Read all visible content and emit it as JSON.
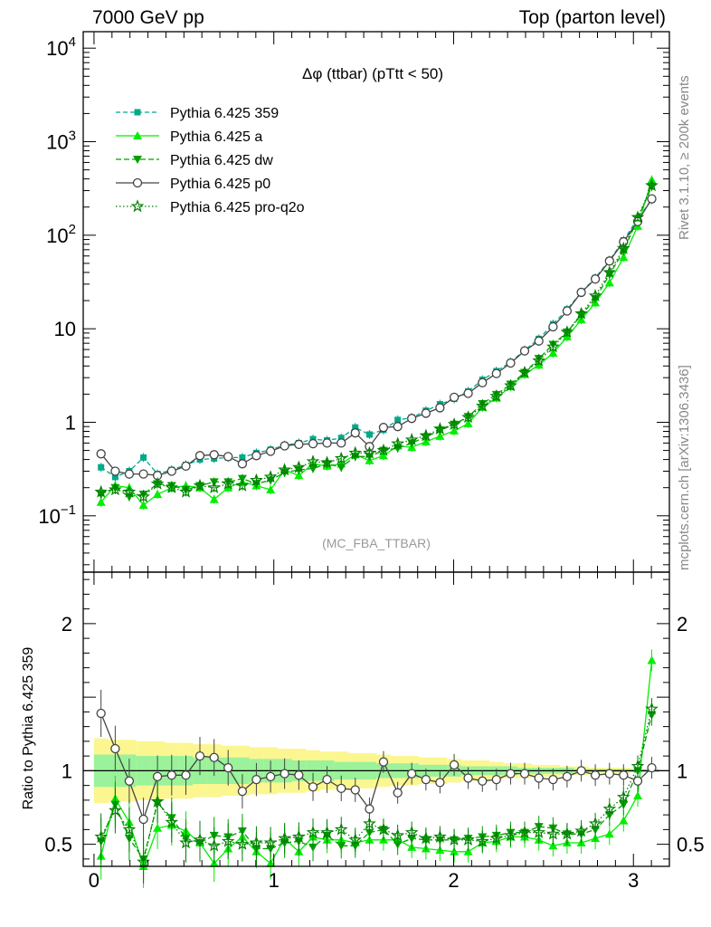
{
  "header": {
    "left": "7000 GeV pp",
    "right": "Top (parton level)"
  },
  "side_labels": {
    "rivet": "Rivet 3.1.10, ≥ 200k events",
    "mcplots": "mcplots.cern.ch [arXiv:1306.3436]"
  },
  "chart_data": [
    {
      "type": "line",
      "title": "Δφ (ttbar) (pTtt < 50)",
      "watermark": "(MC_FBA_TTBAR)",
      "yscale": "log",
      "ylim": [
        0.025,
        15000
      ],
      "xlim": [
        -0.06,
        3.2
      ],
      "legend_position": "top-left",
      "y_ticks": [
        {
          "value": 10000,
          "base": "10",
          "exp": "4"
        },
        {
          "value": 1000,
          "base": "10",
          "exp": "3"
        },
        {
          "value": 100,
          "base": "10",
          "exp": "2"
        },
        {
          "value": 10,
          "base": "10",
          "exp": ""
        },
        {
          "value": 1,
          "base": "1",
          "exp": ""
        },
        {
          "value": 0.1,
          "base": "10",
          "exp": "−1"
        }
      ],
      "x": [
        0.039,
        0.118,
        0.196,
        0.275,
        0.353,
        0.432,
        0.511,
        0.589,
        0.668,
        0.746,
        0.825,
        0.903,
        0.982,
        1.06,
        1.139,
        1.218,
        1.296,
        1.375,
        1.453,
        1.532,
        1.61,
        1.689,
        1.767,
        1.846,
        1.924,
        2.003,
        2.081,
        2.16,
        2.238,
        2.317,
        2.395,
        2.474,
        2.553,
        2.631,
        2.71,
        2.788,
        2.867,
        2.945,
        3.024,
        3.102
      ],
      "series": [
        {
          "name": "Pythia 6.425 359",
          "color": "#00a988",
          "dash": "5,3",
          "marker": "square",
          "values": [
            0.33,
            0.26,
            0.3,
            0.42,
            0.28,
            0.31,
            0.35,
            0.4,
            0.41,
            0.42,
            0.42,
            0.47,
            0.51,
            0.57,
            0.6,
            0.66,
            0.64,
            0.68,
            0.88,
            0.74,
            0.83,
            1.06,
            1.12,
            1.33,
            1.56,
            1.78,
            2.14,
            2.85,
            3.52,
            4.4,
            5.9,
            7.8,
            11.2,
            16.1,
            24.5,
            35.0,
            54.0,
            88.0,
            150.0,
            240.0
          ]
        },
        {
          "name": "Pythia 6.425 a",
          "color": "#00ee00",
          "dash": "",
          "marker": "triangle-up",
          "values": [
            0.14,
            0.21,
            0.2,
            0.13,
            0.17,
            0.2,
            0.21,
            0.2,
            0.15,
            0.2,
            0.23,
            0.21,
            0.19,
            0.31,
            0.27,
            0.36,
            0.34,
            0.36,
            0.45,
            0.39,
            0.44,
            0.56,
            0.54,
            0.62,
            0.71,
            0.81,
            0.97,
            1.45,
            1.82,
            2.41,
            3.26,
            4.1,
            5.5,
            8.2,
            12.5,
            19.0,
            31.0,
            58.0,
            125.0,
            390.0
          ]
        },
        {
          "name": "Pythia 6.425 dw",
          "color": "#00a000",
          "dash": "6,3",
          "marker": "triangle-down",
          "values": [
            0.17,
            0.2,
            0.16,
            0.17,
            0.22,
            0.21,
            0.19,
            0.21,
            0.23,
            0.23,
            0.25,
            0.22,
            0.24,
            0.29,
            0.31,
            0.32,
            0.36,
            0.33,
            0.43,
            0.43,
            0.5,
            0.53,
            0.6,
            0.7,
            0.82,
            0.95,
            1.15,
            1.58,
            1.98,
            2.55,
            3.4,
            4.8,
            6.8,
            9.2,
            14.0,
            21.0,
            38.0,
            68.0,
            150.0,
            330.0
          ]
        },
        {
          "name": "Pythia 6.425 p0",
          "color": "#444444",
          "dash": "",
          "marker": "circle",
          "values": [
            0.46,
            0.3,
            0.28,
            0.28,
            0.27,
            0.3,
            0.34,
            0.44,
            0.45,
            0.43,
            0.36,
            0.44,
            0.49,
            0.56,
            0.58,
            0.59,
            0.6,
            0.6,
            0.77,
            0.55,
            0.88,
            0.9,
            1.1,
            1.25,
            1.43,
            1.85,
            2.04,
            2.65,
            3.32,
            4.3,
            5.8,
            7.4,
            10.5,
            15.5,
            24.5,
            34.0,
            53.0,
            85.0,
            140.0,
            245.0
          ]
        },
        {
          "name": "Pythia 6.425 pro-q2o",
          "color": "#008000",
          "dash": "1.5,2.5",
          "marker": "star",
          "values": [
            0.18,
            0.19,
            0.18,
            0.16,
            0.22,
            0.2,
            0.18,
            0.21,
            0.2,
            0.22,
            0.21,
            0.24,
            0.26,
            0.31,
            0.33,
            0.38,
            0.37,
            0.41,
            0.47,
            0.47,
            0.5,
            0.59,
            0.65,
            0.72,
            0.85,
            0.95,
            1.13,
            1.49,
            1.9,
            2.46,
            3.4,
            4.55,
            6.4,
            9.2,
            14.5,
            22.5,
            40.0,
            72.0,
            155.0,
            340.0
          ]
        }
      ]
    },
    {
      "type": "line",
      "ylabel": "Ratio to Pythia 6.425 359",
      "ylim": [
        0.35,
        2.35
      ],
      "xlim": [
        -0.06,
        3.2
      ],
      "y_ticks": [
        "0.5",
        "1",
        "2"
      ],
      "x_ticks": [
        "0",
        "1",
        "2",
        "3"
      ],
      "band_outer_half_width": [
        0.22,
        0.21,
        0.21,
        0.2,
        0.2,
        0.19,
        0.19,
        0.18,
        0.18,
        0.17,
        0.17,
        0.16,
        0.16,
        0.15,
        0.15,
        0.14,
        0.13,
        0.13,
        0.12,
        0.12,
        0.11,
        0.1,
        0.1,
        0.09,
        0.09,
        0.08,
        0.07,
        0.07,
        0.06,
        0.05,
        0.05,
        0.04,
        0.04,
        0.03,
        0.03,
        0.02,
        0.02,
        0.02,
        0.01,
        0.01
      ],
      "band_inner_half_width": [
        0.11,
        0.11,
        0.11,
        0.1,
        0.1,
        0.1,
        0.1,
        0.09,
        0.09,
        0.09,
        0.09,
        0.08,
        0.08,
        0.08,
        0.07,
        0.07,
        0.07,
        0.06,
        0.06,
        0.06,
        0.05,
        0.05,
        0.05,
        0.04,
        0.04,
        0.04,
        0.03,
        0.03,
        0.03,
        0.03,
        0.02,
        0.02,
        0.02,
        0.02,
        0.01,
        0.01,
        0.01,
        0.01,
        0.01,
        0.01
      ],
      "series": [
        {
          "name": "Pythia 6.425 a",
          "values": [
            0.42,
            0.81,
            0.65,
            0.31,
            0.61,
            0.63,
            0.59,
            0.51,
            0.37,
            0.47,
            0.55,
            0.45,
            0.37,
            0.54,
            0.45,
            0.55,
            0.53,
            0.53,
            0.51,
            0.53,
            0.53,
            0.53,
            0.48,
            0.47,
            0.46,
            0.45,
            0.45,
            0.51,
            0.52,
            0.55,
            0.55,
            0.53,
            0.49,
            0.51,
            0.51,
            0.54,
            0.57,
            0.66,
            0.83,
            1.75
          ]
        },
        {
          "name": "Pythia 6.425 dw",
          "values": [
            0.52,
            0.77,
            0.54,
            0.4,
            0.78,
            0.68,
            0.54,
            0.51,
            0.56,
            0.55,
            0.59,
            0.47,
            0.47,
            0.51,
            0.52,
            0.48,
            0.56,
            0.49,
            0.49,
            0.58,
            0.6,
            0.5,
            0.54,
            0.53,
            0.53,
            0.53,
            0.54,
            0.55,
            0.56,
            0.58,
            0.58,
            0.62,
            0.61,
            0.57,
            0.57,
            0.6,
            0.7,
            0.77,
            1.0,
            1.38
          ]
        },
        {
          "name": "Pythia 6.425 p0",
          "values": [
            1.39,
            1.15,
            0.93,
            0.67,
            0.96,
            0.97,
            0.97,
            1.1,
            1.09,
            1.02,
            0.86,
            0.94,
            0.96,
            0.98,
            0.97,
            0.89,
            0.94,
            0.88,
            0.87,
            0.74,
            1.06,
            0.85,
            0.98,
            0.94,
            0.92,
            1.04,
            0.95,
            0.93,
            0.94,
            0.98,
            0.98,
            0.95,
            0.94,
            0.96,
            1.0,
            0.97,
            0.98,
            0.97,
            0.93,
            1.02
          ]
        },
        {
          "name": "Pythia 6.425 pro-q2o",
          "values": [
            0.55,
            0.73,
            0.6,
            0.38,
            0.79,
            0.65,
            0.51,
            0.53,
            0.49,
            0.52,
            0.5,
            0.51,
            0.51,
            0.54,
            0.55,
            0.58,
            0.58,
            0.6,
            0.53,
            0.64,
            0.6,
            0.56,
            0.58,
            0.54,
            0.55,
            0.53,
            0.53,
            0.52,
            0.54,
            0.56,
            0.58,
            0.58,
            0.57,
            0.57,
            0.59,
            0.64,
            0.74,
            0.82,
            1.03,
            1.42
          ]
        }
      ]
    }
  ]
}
